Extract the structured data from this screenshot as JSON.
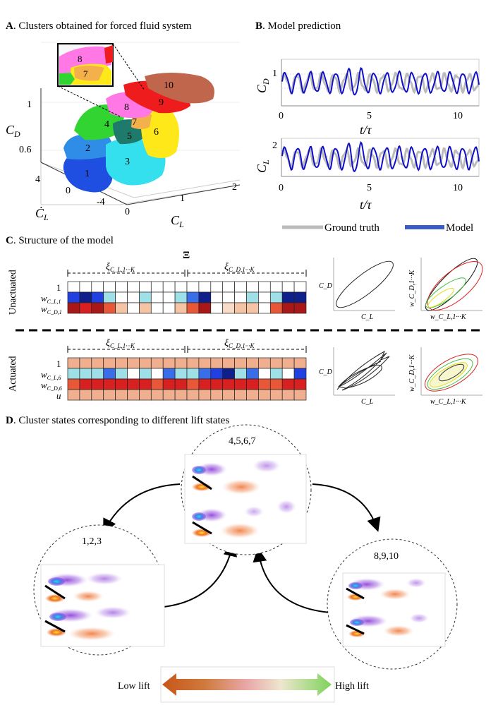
{
  "panels": {
    "a_letter": "A",
    "a_title": ". Clusters obtained for forced fluid system",
    "b_letter": "B",
    "b_title": ". Model prediction",
    "c_letter": "C",
    "c_title": ". Structure of the model",
    "d_letter": "D",
    "d_title": ". Cluster states corresponding to different lift states"
  },
  "panel_a": {
    "zlabel": "C",
    "zlabel_sub": "D",
    "xlabel": "C",
    "xlabel_sub": "L",
    "ylabel": "Ċ",
    "ylabel_sub": "L",
    "z_ticks": [
      "1",
      "0.6"
    ],
    "x_ticks": [
      "0",
      "1",
      "2"
    ],
    "y_ticks": [
      "4",
      "0",
      "-4"
    ],
    "clusters": [
      {
        "id": "1",
        "color": "#1f4fe0"
      },
      {
        "id": "2",
        "color": "#2f8de8"
      },
      {
        "id": "3",
        "color": "#35e0ee"
      },
      {
        "id": "4",
        "color": "#31d431"
      },
      {
        "id": "5",
        "color": "#1e7a6a"
      },
      {
        "id": "6",
        "color": "#ffe81a"
      },
      {
        "id": "7",
        "color": "#f4b04a"
      },
      {
        "id": "8",
        "color": "#ff78e6"
      },
      {
        "id": "9",
        "color": "#ee1c1c"
      },
      {
        "id": "10",
        "color": "#c0664d"
      }
    ],
    "inset_labels": [
      "8",
      "7"
    ]
  },
  "panel_b": {
    "top_ylabel": "C",
    "top_ylabel_sub": "D",
    "bottom_ylabel": "C",
    "bottom_ylabel_sub": "L",
    "xlabel": "t/τ",
    "top_ytick": "1",
    "bottom_ytick": "2",
    "x_ticks": [
      "0",
      "5",
      "10"
    ],
    "legend_truth": "Ground truth",
    "legend_model": "Model",
    "truth_color": "#bbbbbb",
    "model_color": "#1010c8"
  },
  "panel_c": {
    "xi_symbol": "Ξ",
    "xi_left": "ξ",
    "xi_left_sub": "C_L,1···K",
    "xi_right": "ξ",
    "xi_right_sub": "C_D,1···K",
    "unactuated_label": "Unactuated",
    "actuated_label": "Actuated",
    "unact_rows": [
      "1",
      "w",
      "w"
    ],
    "unact_row_subs": [
      "",
      "C_L,1",
      "C_D,1"
    ],
    "act_rows": [
      "1",
      "w",
      "w",
      "u"
    ],
    "act_row_subs": [
      "",
      "C_L,6",
      "C_D,6",
      ""
    ],
    "phase_ylabel": "C_D",
    "phase_xlabel": "C_L",
    "w_ylabel": "w_C_D,1···K",
    "w_xlabel": "w_C_L,1···K"
  },
  "panel_d": {
    "center_label": "4,5,6,7",
    "left_label": "1,2,3",
    "right_label": "8,9,10",
    "low_lift": "Low lift",
    "high_lift": "High lift"
  }
}
